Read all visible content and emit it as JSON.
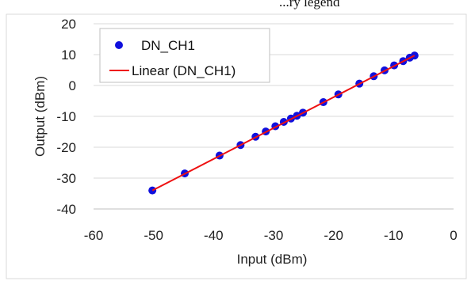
{
  "top_partial_text": "...ry legend",
  "chart_data": {
    "type": "scatter",
    "title": "",
    "xlabel": "Input (dBm)",
    "ylabel": "Output (dBm)",
    "xlim": [
      -60,
      0
    ],
    "ylim": [
      -40,
      20
    ],
    "xticks": [
      -60,
      -50,
      -40,
      -30,
      -20,
      -10,
      0
    ],
    "yticks": [
      -40,
      -30,
      -20,
      -10,
      0,
      10,
      20
    ],
    "grid": true,
    "legend_position": "top-left",
    "series": [
      {
        "name": "DN_CH1",
        "kind": "markers",
        "color": "#1010dd",
        "points": [
          [
            -50.2,
            -34.0
          ],
          [
            -44.8,
            -28.5
          ],
          [
            -39.0,
            -22.7
          ],
          [
            -35.5,
            -19.3
          ],
          [
            -33.0,
            -16.6
          ],
          [
            -31.3,
            -14.9
          ],
          [
            -29.7,
            -13.2
          ],
          [
            -28.3,
            -11.8
          ],
          [
            -27.1,
            -10.7
          ],
          [
            -26.1,
            -9.8
          ],
          [
            -25.1,
            -8.8
          ],
          [
            -21.7,
            -5.4
          ],
          [
            -19.2,
            -2.9
          ],
          [
            -15.7,
            0.6
          ],
          [
            -13.3,
            3.0
          ],
          [
            -11.5,
            4.9
          ],
          [
            -9.9,
            6.5
          ],
          [
            -8.4,
            7.9
          ],
          [
            -7.3,
            9.0
          ],
          [
            -6.5,
            9.7
          ]
        ]
      },
      {
        "name": "Linear (DN_CH1)",
        "kind": "line",
        "color": "#ee1111",
        "points": [
          [
            -50.2,
            -34.0
          ],
          [
            -6.5,
            9.7
          ]
        ]
      }
    ]
  }
}
